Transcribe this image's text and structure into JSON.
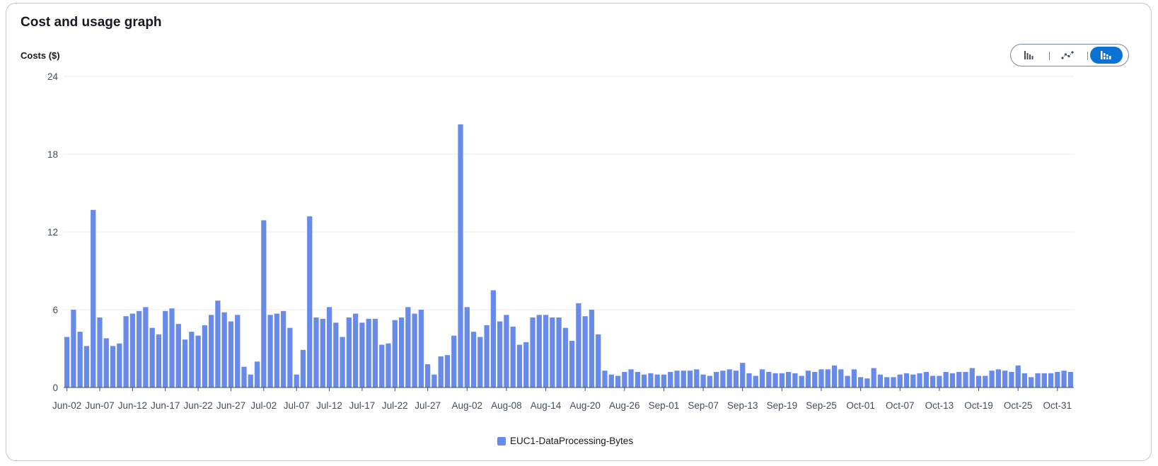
{
  "panel": {
    "title": "Cost and usage graph"
  },
  "chart_toggle": {
    "options": [
      {
        "icon": "bar-chart-icon",
        "active": false
      },
      {
        "icon": "line-chart-icon",
        "active": false
      },
      {
        "icon": "stacked-bar-chart-icon",
        "active": true
      }
    ]
  },
  "colors": {
    "bar": "#688ae8",
    "grid": "#e9ebed",
    "axis": "#414d5c",
    "accent": "#0972d3"
  },
  "chart_data": {
    "type": "bar",
    "title": "",
    "ylabel": "Costs ($)",
    "xlabel": "",
    "ylim": [
      0,
      24
    ],
    "yticks": [
      0,
      6,
      12,
      18,
      24
    ],
    "grid": true,
    "legend_position": "bottom",
    "x_tick_labels": [
      "Jun-02",
      "Jun-07",
      "Jun-12",
      "Jun-17",
      "Jun-22",
      "Jun-27",
      "Jul-02",
      "Jul-07",
      "Jul-12",
      "Jul-17",
      "Jul-22",
      "Jul-27",
      "Aug-02",
      "Aug-08",
      "Aug-14",
      "Aug-20",
      "Aug-26",
      "Sep-01",
      "Sep-07",
      "Sep-13",
      "Sep-19",
      "Sep-25",
      "Oct-01",
      "Oct-07",
      "Oct-13",
      "Oct-19",
      "Oct-25",
      "Oct-31"
    ],
    "x_tick_indices": [
      0,
      5,
      10,
      15,
      20,
      25,
      30,
      35,
      40,
      45,
      50,
      55,
      61,
      67,
      73,
      79,
      85,
      91,
      97,
      103,
      109,
      115,
      121,
      127,
      133,
      139,
      145,
      151
    ],
    "series": [
      {
        "name": "EUC1-DataProcessing-Bytes",
        "values": [
          3.9,
          6.0,
          4.3,
          3.2,
          13.7,
          5.4,
          3.8,
          3.2,
          3.4,
          5.5,
          5.7,
          5.9,
          6.2,
          4.6,
          4.1,
          5.9,
          6.1,
          4.9,
          3.7,
          4.3,
          4.0,
          4.8,
          5.6,
          6.7,
          5.8,
          5.1,
          5.6,
          1.6,
          1.0,
          2.0,
          12.9,
          5.6,
          5.7,
          5.9,
          4.6,
          1.0,
          2.9,
          13.2,
          5.4,
          5.3,
          6.2,
          5.0,
          3.9,
          5.4,
          5.7,
          5.0,
          5.3,
          5.3,
          3.3,
          3.4,
          5.2,
          5.4,
          6.2,
          5.7,
          6.0,
          1.8,
          1.0,
          2.4,
          2.5,
          4.0,
          20.3,
          6.2,
          4.3,
          3.9,
          4.8,
          7.5,
          5.1,
          5.6,
          4.7,
          3.3,
          3.5,
          5.4,
          5.6,
          5.6,
          5.4,
          5.4,
          4.6,
          3.6,
          6.5,
          5.5,
          6.0,
          4.1,
          1.3,
          1.0,
          0.9,
          1.2,
          1.4,
          1.2,
          1.0,
          1.1,
          1.0,
          1.0,
          1.2,
          1.3,
          1.3,
          1.3,
          1.4,
          1.0,
          0.9,
          1.2,
          1.3,
          1.4,
          1.3,
          1.9,
          1.1,
          0.9,
          1.4,
          1.2,
          1.1,
          1.1,
          1.2,
          1.1,
          0.9,
          1.3,
          1.2,
          1.4,
          1.4,
          1.7,
          1.4,
          0.9,
          1.4,
          0.8,
          0.7,
          1.5,
          1.0,
          0.8,
          0.8,
          1.0,
          1.1,
          1.0,
          1.1,
          1.2,
          0.9,
          0.9,
          1.2,
          1.1,
          1.2,
          1.2,
          1.5,
          0.9,
          0.9,
          1.3,
          1.4,
          1.3,
          1.2,
          1.7,
          1.1,
          0.8,
          1.1,
          1.1,
          1.1,
          1.2,
          1.3,
          1.2
        ]
      }
    ]
  }
}
